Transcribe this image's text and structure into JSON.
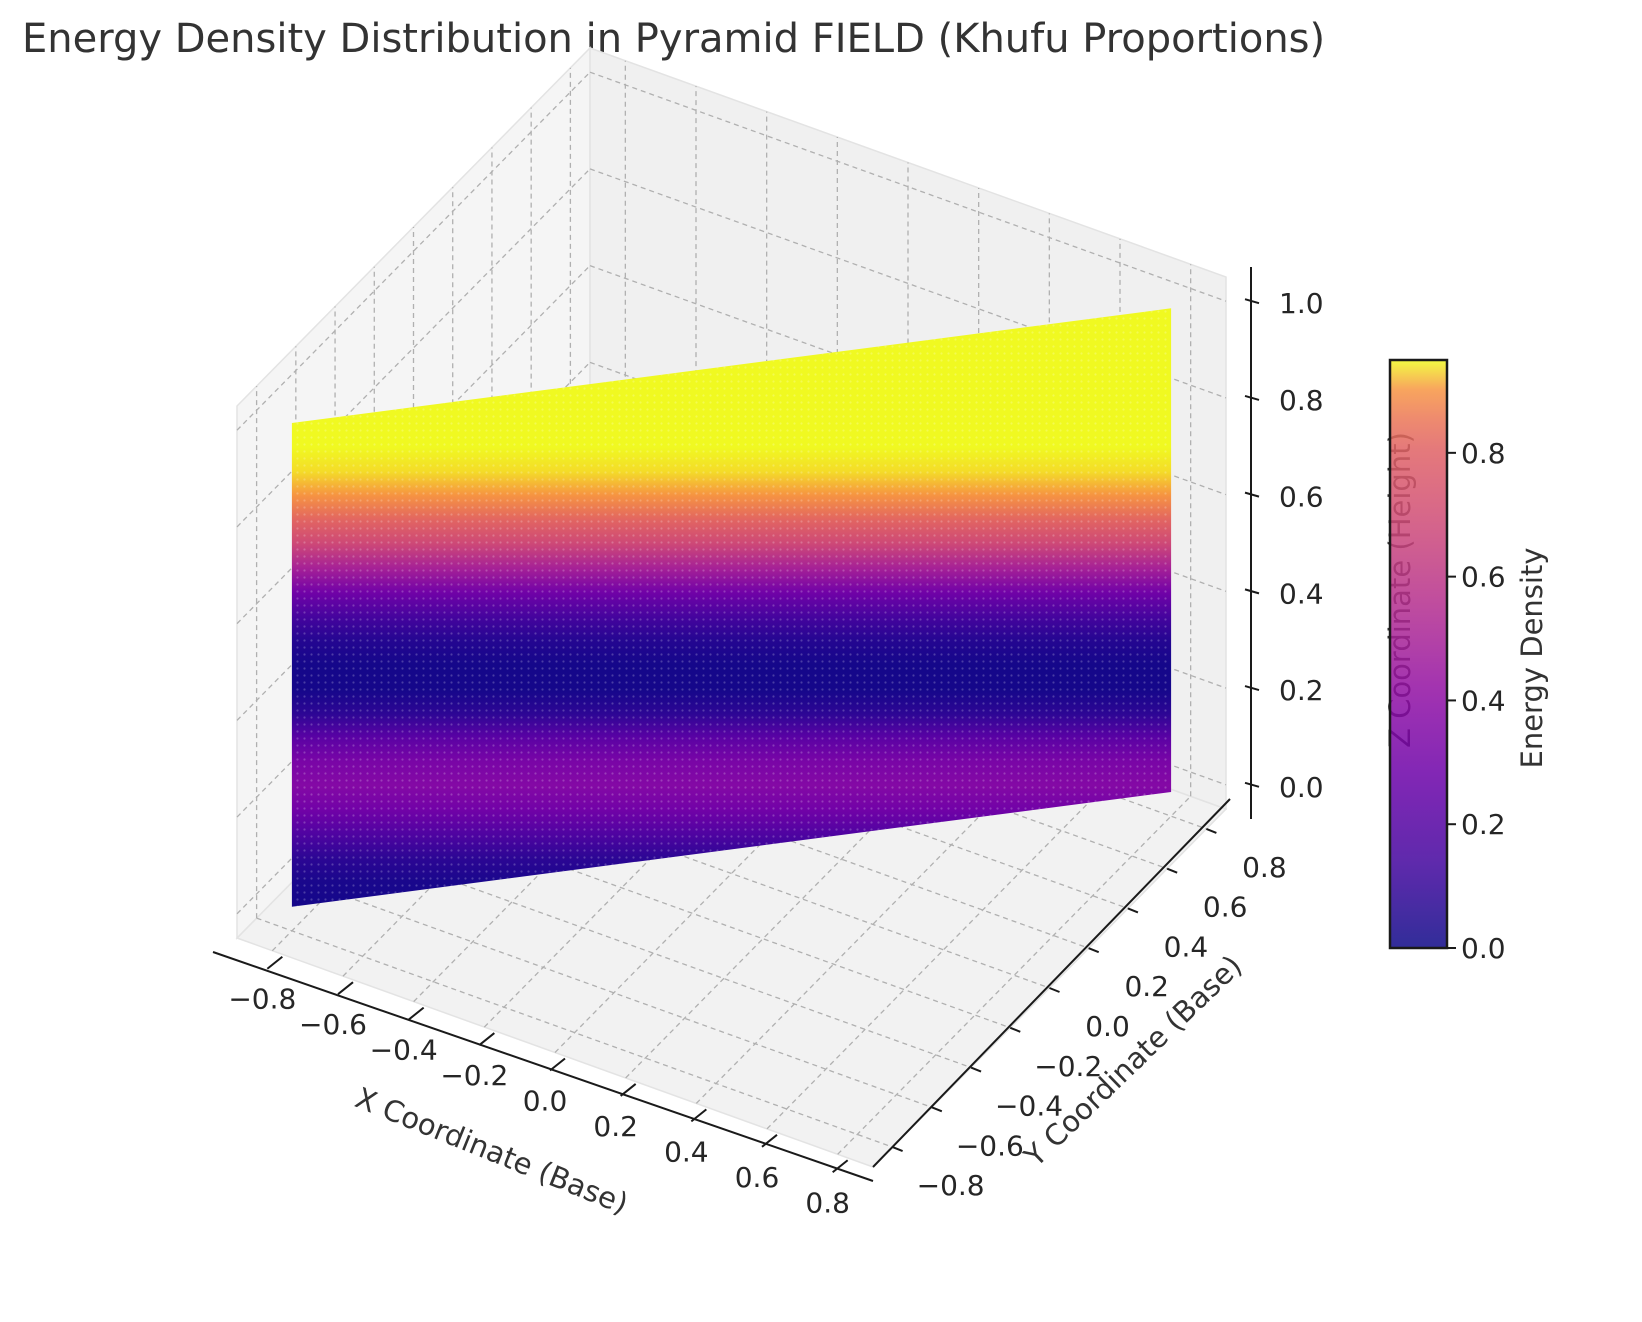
{
  "chart_data": {
    "type": "scatter",
    "projection": "3d",
    "title": "Energy Density Distribution in Pyramid FIELD (Khufu Proportions)",
    "xlabel": "X Coordinate (Base)",
    "ylabel": "Y Coordinate (Base)",
    "zlabel": "Z Coordinate (Height)",
    "colorbar_label": "Energy Density",
    "colormap": "plasma",
    "xlim": [
      -0.9,
      0.9
    ],
    "ylim": [
      -0.9,
      0.9
    ],
    "zlim": [
      -0.05,
      1.05
    ],
    "x_ticks": [
      "−0.8",
      "−0.6",
      "−0.4",
      "−0.2",
      "0.0",
      "0.2",
      "0.4",
      "0.6",
      "0.8"
    ],
    "y_ticks": [
      "−0.8",
      "−0.6",
      "−0.4",
      "−0.2",
      "0.0",
      "0.2",
      "0.4",
      "0.6",
      "0.8"
    ],
    "z_ticks": [
      "0.0",
      "0.2",
      "0.4",
      "0.6",
      "0.8",
      "1.0"
    ],
    "colorbar_ticks": [
      "0.0",
      "0.2",
      "0.4",
      "0.6",
      "0.8"
    ],
    "colorbar_range": [
      0,
      0.95
    ],
    "grid": true,
    "surface": {
      "x_range": [
        -0.8,
        0.8
      ],
      "y_range": [
        -0.8,
        0.8
      ],
      "z_range": [
        0,
        1
      ],
      "energy_by_height": [
        {
          "z": 0.0,
          "energy": 0.02
        },
        {
          "z": 0.05,
          "energy": 0.03
        },
        {
          "z": 0.1,
          "energy": 0.08
        },
        {
          "z": 0.15,
          "energy": 0.18
        },
        {
          "z": 0.2,
          "energy": 0.3
        },
        {
          "z": 0.25,
          "energy": 0.37
        },
        {
          "z": 0.3,
          "energy": 0.33
        },
        {
          "z": 0.35,
          "energy": 0.22
        },
        {
          "z": 0.4,
          "energy": 0.08
        },
        {
          "z": 0.45,
          "energy": 0.02
        },
        {
          "z": 0.5,
          "energy": 0.02
        },
        {
          "z": 0.55,
          "energy": 0.06
        },
        {
          "z": 0.6,
          "energy": 0.15
        },
        {
          "z": 0.65,
          "energy": 0.3
        },
        {
          "z": 0.7,
          "energy": 0.5
        },
        {
          "z": 0.75,
          "energy": 0.68
        },
        {
          "z": 0.8,
          "energy": 0.82
        },
        {
          "z": 0.85,
          "energy": 0.9
        },
        {
          "z": 0.9,
          "energy": 0.94
        },
        {
          "z": 0.95,
          "energy": 0.95
        },
        {
          "z": 1.0,
          "energy": 0.95
        }
      ]
    }
  }
}
